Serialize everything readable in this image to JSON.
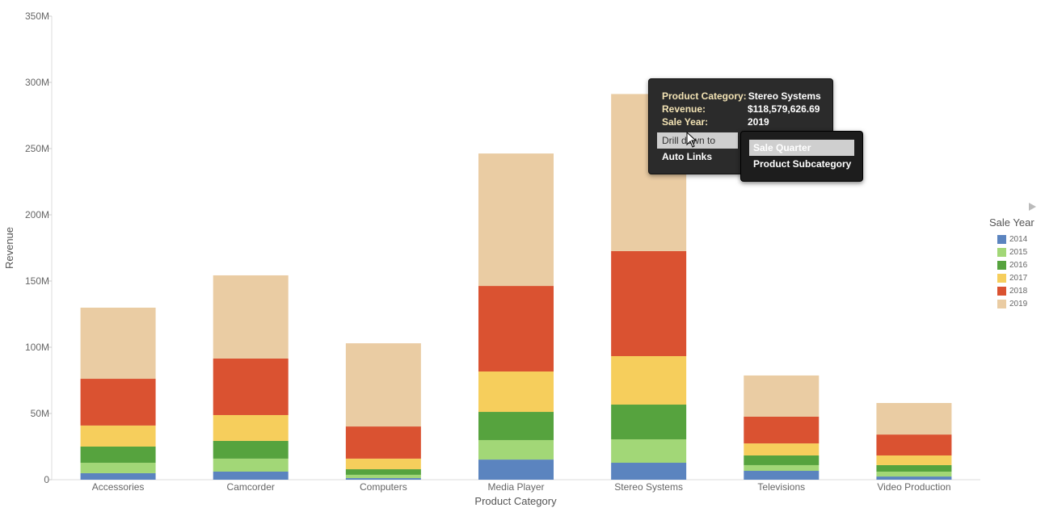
{
  "chart_data": {
    "type": "bar",
    "stacked": true,
    "xlabel": "Product Category",
    "ylabel": "Revenue",
    "ylim": [
      0,
      350000000
    ],
    "yticks": [
      0,
      50000000,
      100000000,
      150000000,
      200000000,
      250000000,
      300000000,
      350000000
    ],
    "ytick_labels": [
      "0",
      "50M",
      "100M",
      "150M",
      "200M",
      "250M",
      "300M",
      "350M"
    ],
    "grid": false,
    "categories": [
      "Accessories",
      "Camcorder",
      "Computers",
      "Media Player",
      "Stereo Systems",
      "Televisions",
      "Video Production"
    ],
    "series": [
      {
        "name": "2014",
        "color": "#5b84bf",
        "values": [
          4.9,
          6.1,
          1.2,
          15.2,
          12.8,
          6.7,
          2.4
        ]
      },
      {
        "name": "2015",
        "color": "#a2d777",
        "values": [
          7.9,
          9.8,
          2.5,
          14.7,
          17.7,
          4.3,
          3.7
        ]
      },
      {
        "name": "2016",
        "color": "#56a33e",
        "values": [
          12.2,
          13.4,
          4.2,
          21.3,
          26.2,
          7.3,
          4.9
        ]
      },
      {
        "name": "2017",
        "color": "#f6ce5c",
        "values": [
          15.9,
          19.5,
          8.0,
          30.5,
          36.6,
          9.1,
          7.3
        ]
      },
      {
        "name": "2018",
        "color": "#da5231",
        "values": [
          35.3,
          42.7,
          24.3,
          64.6,
          79.3,
          20.2,
          15.8
        ]
      },
      {
        "name": "2019",
        "color": "#eacca3",
        "values": [
          53.7,
          62.8,
          62.8,
          100.0,
          118.6,
          31.1,
          23.8
        ]
      }
    ],
    "value_unit": "M",
    "legend": {
      "title": "Sale Year",
      "placement": "right"
    }
  },
  "tooltip": {
    "rows": [
      {
        "key": "Product Category:",
        "value": "Stereo Systems"
      },
      {
        "key": "Revenue:",
        "value": "$118,579,626.69"
      },
      {
        "key": "Sale Year:",
        "value": "2019"
      }
    ],
    "menu": [
      "Drill down to",
      "Auto Links"
    ],
    "submenu": [
      "Sale Quarter",
      "Product Subcategory"
    ]
  }
}
